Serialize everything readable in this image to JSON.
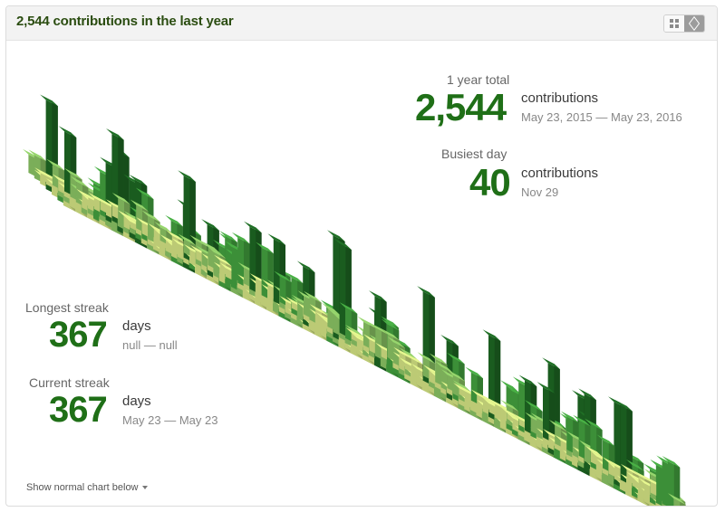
{
  "header": {
    "title": "2,544 contributions in the last year",
    "toggle": {
      "active": "3d",
      "options": [
        "grid-icon",
        "cube-icon"
      ]
    }
  },
  "year_total": {
    "label": "1 year total",
    "value": "2,544",
    "unit": "contributions",
    "range": "May 23, 2015 — May 23, 2016"
  },
  "busiest_day": {
    "label": "Busiest day",
    "value": "40",
    "unit": "contributions",
    "date": "Nov 29"
  },
  "longest_streak": {
    "label": "Longest streak",
    "value": "367",
    "unit": "days",
    "range": "null — null"
  },
  "current_streak": {
    "label": "Current streak",
    "value": "367",
    "unit": "days",
    "range": "May 23 — May 23"
  },
  "footer": {
    "toggle_label": "Show normal chart below"
  },
  "colors": {
    "title": "#2b4d11",
    "stat_number": "#1f6f17",
    "level1": "#d6e685",
    "level2": "#8cc665",
    "level3": "#44a340",
    "level4": "#1e6823"
  },
  "chart_data": {
    "type": "heatmap",
    "title": "",
    "range": "May 23, 2015 — May 23, 2016",
    "total": 2544,
    "max": 40,
    "weeks": 53,
    "days_per_week": 7,
    "seed": 20150523
  }
}
